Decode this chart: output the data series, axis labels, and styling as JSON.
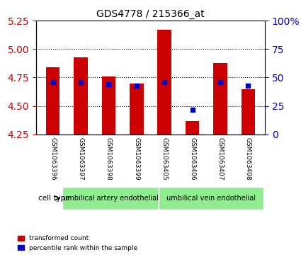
{
  "title": "GDS4778 / 215366_at",
  "samples": [
    "GSM1063396",
    "GSM1063397",
    "GSM1063398",
    "GSM1063399",
    "GSM1063405",
    "GSM1063406",
    "GSM1063407",
    "GSM1063408"
  ],
  "red_values": [
    4.84,
    4.93,
    4.76,
    4.7,
    5.17,
    4.37,
    4.88,
    4.65
  ],
  "blue_values": [
    46,
    46,
    44,
    43,
    46,
    22,
    46,
    43
  ],
  "ymin": 4.25,
  "ymax": 5.25,
  "yticks": [
    4.25,
    4.5,
    4.75,
    5.0,
    5.25
  ],
  "right_yticks": [
    0,
    25,
    50,
    75,
    100
  ],
  "cell_types": [
    {
      "label": "umbilical artery endothelial",
      "start": 0,
      "end": 4,
      "color": "#90EE90"
    },
    {
      "label": "umbilical vein endothelial",
      "start": 4,
      "end": 8,
      "color": "#90EE90"
    }
  ],
  "bar_color": "#CC0000",
  "blue_color": "#0000CC",
  "bg_color": "#DDDDDD",
  "bar_width": 0.5,
  "left_label_color": "#CC0000",
  "right_label_color": "#0000CC"
}
